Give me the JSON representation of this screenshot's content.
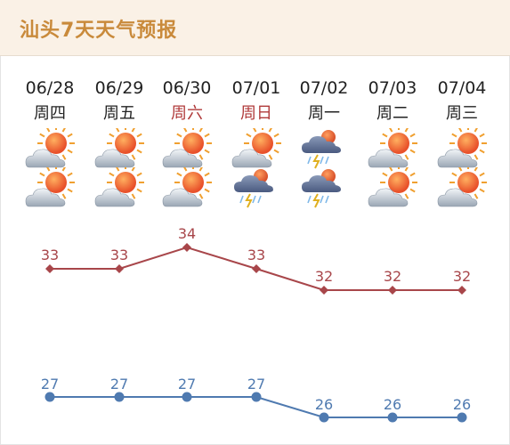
{
  "header": {
    "title": "汕头7天天气预报"
  },
  "days": [
    {
      "date": "06/28",
      "weekday": "周四",
      "weekend": false,
      "day_icon": "sun-cloud-icon",
      "night_icon": "sun-cloud-icon",
      "high": 33,
      "low": 27
    },
    {
      "date": "06/29",
      "weekday": "周五",
      "weekend": false,
      "day_icon": "sun-cloud-icon",
      "night_icon": "sun-cloud-icon",
      "high": 33,
      "low": 27
    },
    {
      "date": "06/30",
      "weekday": "周六",
      "weekend": true,
      "day_icon": "sun-cloud-icon",
      "night_icon": "sun-cloud-icon",
      "high": 34,
      "low": 27
    },
    {
      "date": "07/01",
      "weekday": "周日",
      "weekend": true,
      "day_icon": "sun-cloud-icon",
      "night_icon": "thunder-rain-icon",
      "high": 33,
      "low": 27
    },
    {
      "date": "07/02",
      "weekday": "周一",
      "weekend": false,
      "day_icon": "thunder-rain-icon",
      "night_icon": "thunder-rain-icon",
      "high": 32,
      "low": 26
    },
    {
      "date": "07/03",
      "weekday": "周二",
      "weekend": false,
      "day_icon": "sun-cloud-icon",
      "night_icon": "sun-cloud-icon",
      "high": 32,
      "low": 26
    },
    {
      "date": "07/04",
      "weekday": "周三",
      "weekend": false,
      "day_icon": "sun-cloud-icon",
      "night_icon": "sun-cloud-icon",
      "high": 32,
      "low": 26
    }
  ],
  "colors": {
    "high_line": "#a8464a",
    "low_line": "#4f7ab0",
    "weekend_text": "#b03a3a",
    "title": "#c98a3b"
  }
}
